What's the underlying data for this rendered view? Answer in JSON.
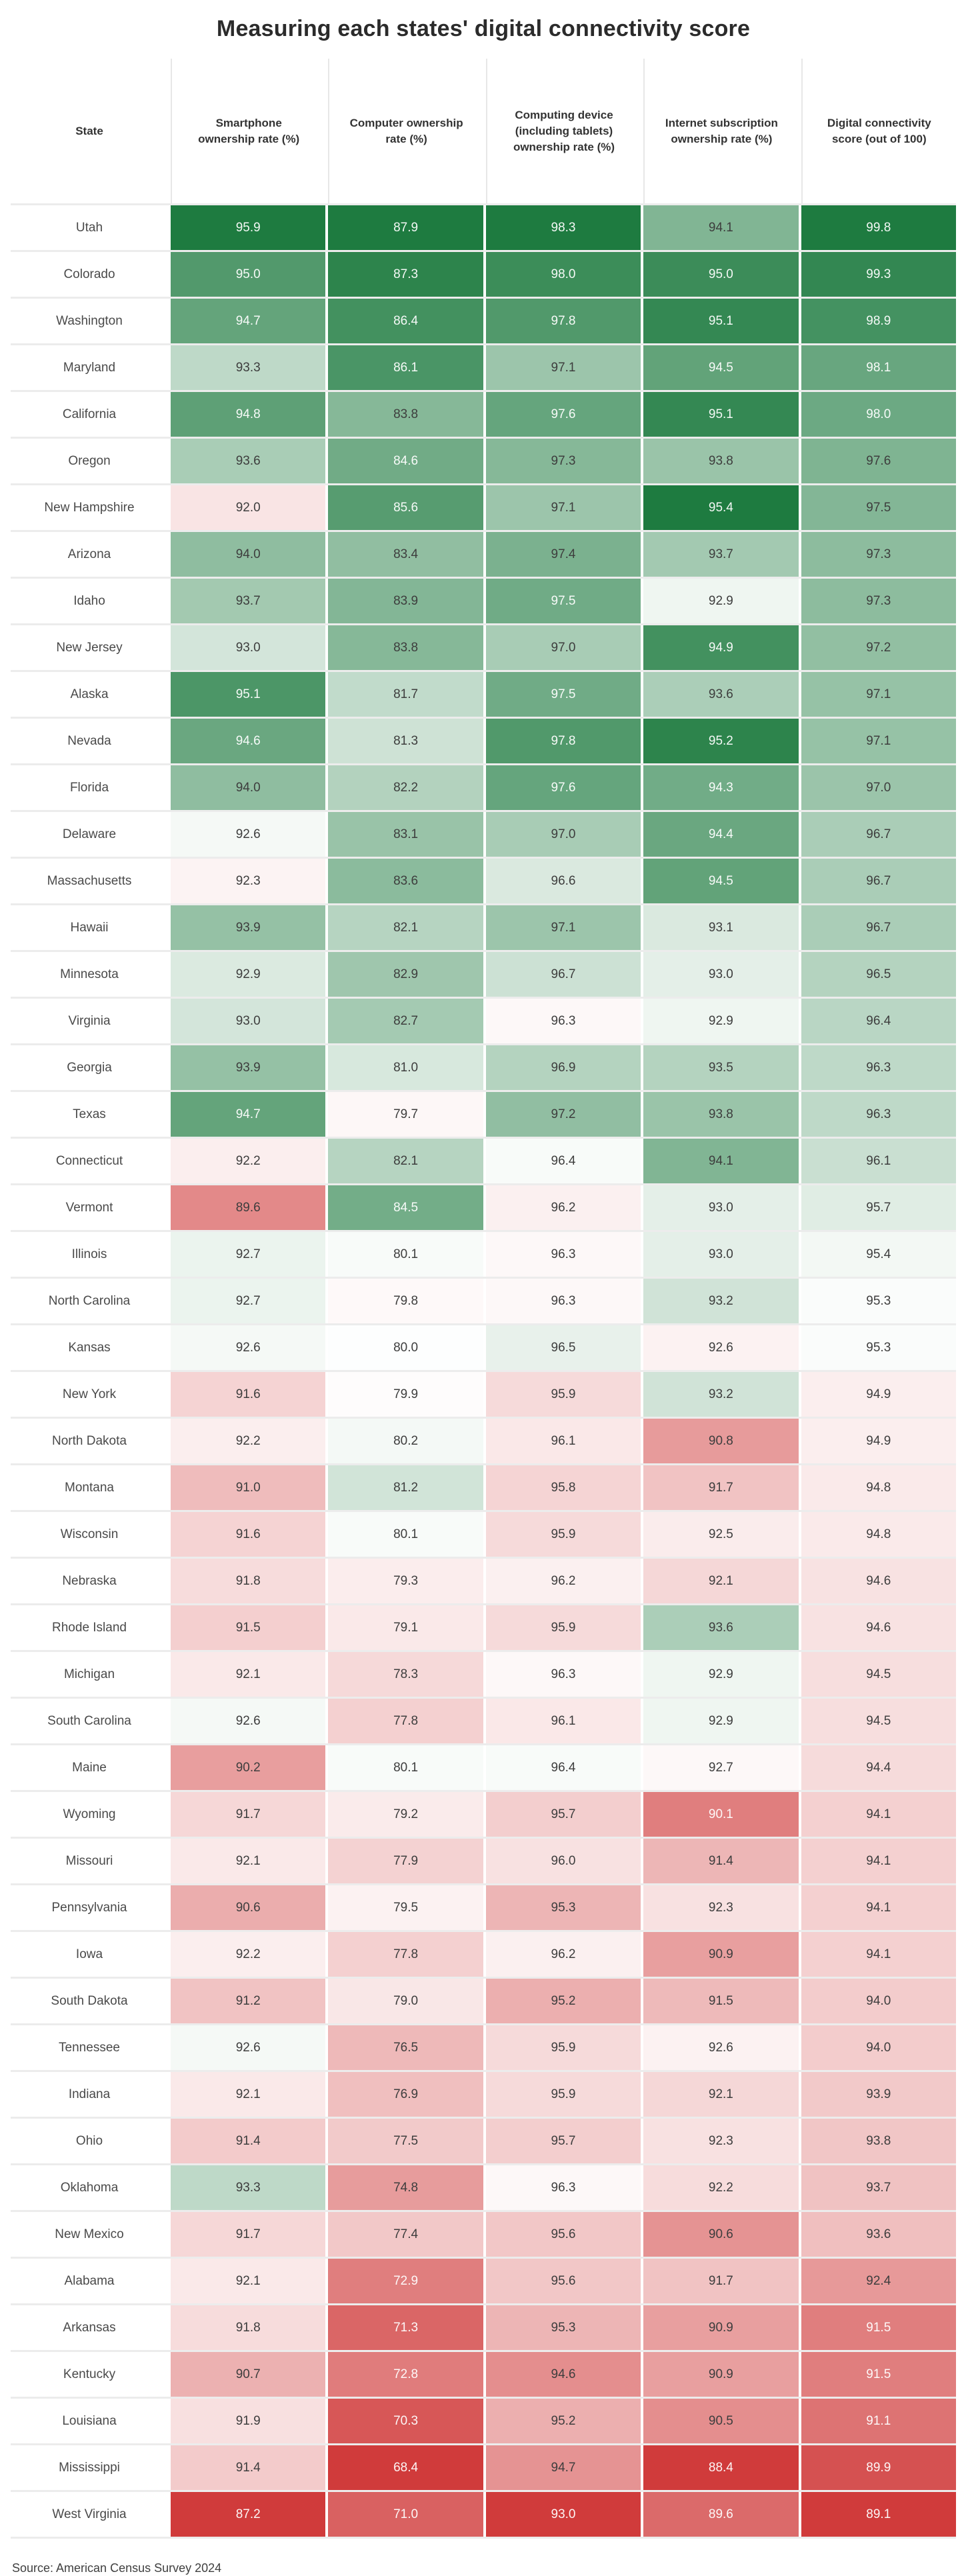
{
  "title": "Measuring each states' digital connectivity score",
  "source": "Source: American Census Survey 2024",
  "columns": [
    "State",
    "Smartphone ownership rate (%)",
    "Computer ownership rate (%)",
    "Computing device (including tablets) ownership rate (%)",
    "Internet subscription ownership rate (%)",
    "Digital connectivity score (out of 100)"
  ],
  "colors": {
    "positive_end": "#1e7b40",
    "negative_end": "#d03b3b",
    "neutral": "#ffffff",
    "text_dark": "#3d3d3d",
    "text_light": "rgba(255,255,255,0.95)",
    "divider": "#ececec"
  },
  "chart_data": {
    "type": "heatmap",
    "title": "Measuring each states' digital connectivity score",
    "value_columns": [
      "Smartphone ownership rate (%)",
      "Computer ownership rate (%)",
      "Computing device (including tablets) ownership rate (%)",
      "Internet subscription ownership rate (%)",
      "Digital connectivity score (out of 100)"
    ],
    "color_scale": "diverging red-white-green, normalized per column around column mean",
    "rows": [
      {
        "state": "Utah",
        "values": [
          95.9,
          87.9,
          98.3,
          94.1,
          99.8
        ]
      },
      {
        "state": "Colorado",
        "values": [
          95.0,
          87.3,
          98.0,
          95.0,
          99.3
        ]
      },
      {
        "state": "Washington",
        "values": [
          94.7,
          86.4,
          97.8,
          95.1,
          98.9
        ]
      },
      {
        "state": "Maryland",
        "values": [
          93.3,
          86.1,
          97.1,
          94.5,
          98.1
        ]
      },
      {
        "state": "California",
        "values": [
          94.8,
          83.8,
          97.6,
          95.1,
          98.0
        ]
      },
      {
        "state": "Oregon",
        "values": [
          93.6,
          84.6,
          97.3,
          93.8,
          97.6
        ]
      },
      {
        "state": "New Hampshire",
        "values": [
          92.0,
          85.6,
          97.1,
          95.4,
          97.5
        ]
      },
      {
        "state": "Arizona",
        "values": [
          94.0,
          83.4,
          97.4,
          93.7,
          97.3
        ]
      },
      {
        "state": "Idaho",
        "values": [
          93.7,
          83.9,
          97.5,
          92.9,
          97.3
        ]
      },
      {
        "state": "New Jersey",
        "values": [
          93.0,
          83.8,
          97.0,
          94.9,
          97.2
        ]
      },
      {
        "state": "Alaska",
        "values": [
          95.1,
          81.7,
          97.5,
          93.6,
          97.1
        ]
      },
      {
        "state": "Nevada",
        "values": [
          94.6,
          81.3,
          97.8,
          95.2,
          97.1
        ]
      },
      {
        "state": "Florida",
        "values": [
          94.0,
          82.2,
          97.6,
          94.3,
          97.0
        ]
      },
      {
        "state": "Delaware",
        "values": [
          92.6,
          83.1,
          97.0,
          94.4,
          96.7
        ]
      },
      {
        "state": "Massachusetts",
        "values": [
          92.3,
          83.6,
          96.6,
          94.5,
          96.7
        ]
      },
      {
        "state": "Hawaii",
        "values": [
          93.9,
          82.1,
          97.1,
          93.1,
          96.7
        ]
      },
      {
        "state": "Minnesota",
        "values": [
          92.9,
          82.9,
          96.7,
          93.0,
          96.5
        ]
      },
      {
        "state": "Virginia",
        "values": [
          93.0,
          82.7,
          96.3,
          92.9,
          96.4
        ]
      },
      {
        "state": "Georgia",
        "values": [
          93.9,
          81.0,
          96.9,
          93.5,
          96.3
        ]
      },
      {
        "state": "Texas",
        "values": [
          94.7,
          79.7,
          97.2,
          93.8,
          96.3
        ]
      },
      {
        "state": "Connecticut",
        "values": [
          92.2,
          82.1,
          96.4,
          94.1,
          96.1
        ]
      },
      {
        "state": "Vermont",
        "values": [
          89.6,
          84.5,
          96.2,
          93.0,
          95.7
        ]
      },
      {
        "state": "Illinois",
        "values": [
          92.7,
          80.1,
          96.3,
          93.0,
          95.4
        ]
      },
      {
        "state": "North Carolina",
        "values": [
          92.7,
          79.8,
          96.3,
          93.2,
          95.3
        ]
      },
      {
        "state": "Kansas",
        "values": [
          92.6,
          80.0,
          96.5,
          92.6,
          95.3
        ]
      },
      {
        "state": "New York",
        "values": [
          91.6,
          79.9,
          95.9,
          93.2,
          94.9
        ]
      },
      {
        "state": "North Dakota",
        "values": [
          92.2,
          80.2,
          96.1,
          90.8,
          94.9
        ]
      },
      {
        "state": "Montana",
        "values": [
          91.0,
          81.2,
          95.8,
          91.7,
          94.8
        ]
      },
      {
        "state": "Wisconsin",
        "values": [
          91.6,
          80.1,
          95.9,
          92.5,
          94.8
        ]
      },
      {
        "state": "Nebraska",
        "values": [
          91.8,
          79.3,
          96.2,
          92.1,
          94.6
        ]
      },
      {
        "state": "Rhode Island",
        "values": [
          91.5,
          79.1,
          95.9,
          93.6,
          94.6
        ]
      },
      {
        "state": "Michigan",
        "values": [
          92.1,
          78.3,
          96.3,
          92.9,
          94.5
        ]
      },
      {
        "state": "South Carolina",
        "values": [
          92.6,
          77.8,
          96.1,
          92.9,
          94.5
        ]
      },
      {
        "state": "Maine",
        "values": [
          90.2,
          80.1,
          96.4,
          92.7,
          94.4
        ]
      },
      {
        "state": "Wyoming",
        "values": [
          91.7,
          79.2,
          95.7,
          90.1,
          94.1
        ]
      },
      {
        "state": "Missouri",
        "values": [
          92.1,
          77.9,
          96.0,
          91.4,
          94.1
        ]
      },
      {
        "state": "Pennsylvania",
        "values": [
          90.6,
          79.5,
          95.3,
          92.3,
          94.1
        ]
      },
      {
        "state": "Iowa",
        "values": [
          92.2,
          77.8,
          96.2,
          90.9,
          94.1
        ]
      },
      {
        "state": "South Dakota",
        "values": [
          91.2,
          79.0,
          95.2,
          91.5,
          94.0
        ]
      },
      {
        "state": "Tennessee",
        "values": [
          92.6,
          76.5,
          95.9,
          92.6,
          94.0
        ]
      },
      {
        "state": "Indiana",
        "values": [
          92.1,
          76.9,
          95.9,
          92.1,
          93.9
        ]
      },
      {
        "state": "Ohio",
        "values": [
          91.4,
          77.5,
          95.7,
          92.3,
          93.8
        ]
      },
      {
        "state": "Oklahoma",
        "values": [
          93.3,
          74.8,
          96.3,
          92.2,
          93.7
        ]
      },
      {
        "state": "New Mexico",
        "values": [
          91.7,
          77.4,
          95.6,
          90.6,
          93.6
        ]
      },
      {
        "state": "Alabama",
        "values": [
          92.1,
          72.9,
          95.6,
          91.7,
          92.4
        ]
      },
      {
        "state": "Arkansas",
        "values": [
          91.8,
          71.3,
          95.3,
          90.9,
          91.5
        ]
      },
      {
        "state": "Kentucky",
        "values": [
          90.7,
          72.8,
          94.6,
          90.9,
          91.5
        ]
      },
      {
        "state": "Louisiana",
        "values": [
          91.9,
          70.3,
          95.2,
          90.5,
          91.1
        ]
      },
      {
        "state": "Mississippi",
        "values": [
          91.4,
          68.4,
          94.7,
          88.4,
          89.9
        ]
      },
      {
        "state": "West Virginia",
        "values": [
          87.2,
          71.0,
          93.0,
          89.6,
          89.1
        ]
      }
    ]
  }
}
